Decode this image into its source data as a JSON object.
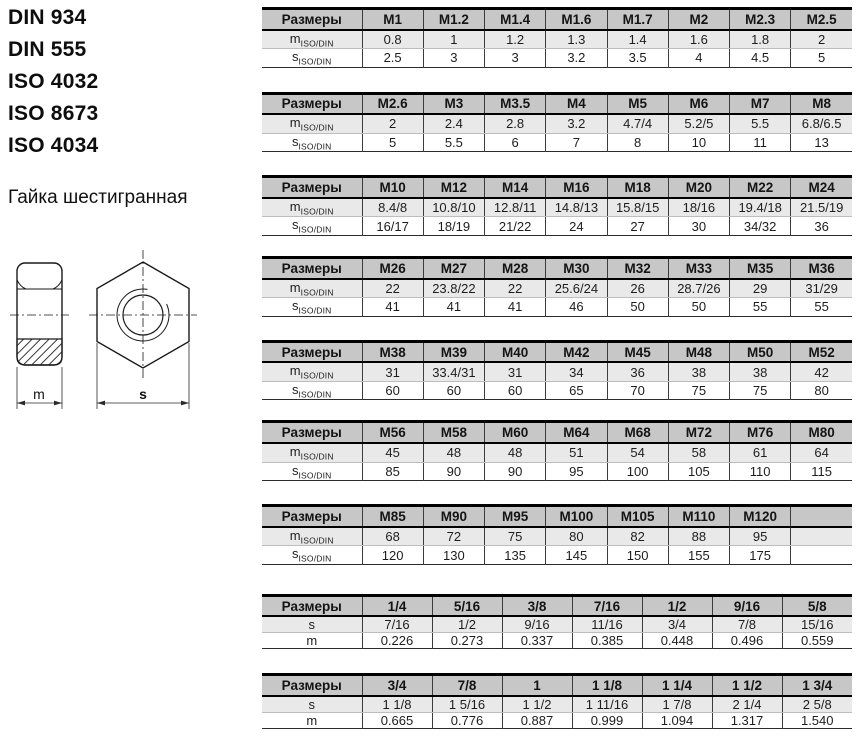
{
  "page": {
    "standards": [
      "DIN 934",
      "DIN 555",
      "ISO 4032",
      "ISO 8673",
      "ISO 4034"
    ],
    "subtitle": "Гайка шестигранная"
  },
  "drawing": {
    "height_dim_label": "m",
    "width_dim_label": "s"
  },
  "colors": {
    "header_bg": "#c7c7c7",
    "alt_row_bg": "#e9e9e9",
    "line": "#1a1a1a"
  },
  "tables": [
    {
      "header": "Размеры",
      "columns": [
        "M1",
        "M1.2",
        "M1.4",
        "M1.6",
        "M1.7",
        "M2",
        "M2.3",
        "M2.5"
      ],
      "rows": [
        {
          "label": "m",
          "sub": "ISO/DIN",
          "values": [
            "0.8",
            "1",
            "1.2",
            "1.3",
            "1.4",
            "1.6",
            "1.8",
            "2"
          ]
        },
        {
          "label": "s",
          "sub": "ISO/DIN",
          "values": [
            "2.5",
            "3",
            "3",
            "3.2",
            "3.5",
            "4",
            "4.5",
            "5"
          ]
        }
      ]
    },
    {
      "header": "Размеры",
      "columns": [
        "M2.6",
        "M3",
        "M3.5",
        "M4",
        "M5",
        "M6",
        "M7",
        "M8"
      ],
      "rows": [
        {
          "label": "m",
          "sub": "ISO/DIN",
          "values": [
            "2",
            "2.4",
            "2.8",
            "3.2",
            "4.7/4",
            "5.2/5",
            "5.5",
            "6.8/6.5"
          ]
        },
        {
          "label": "s",
          "sub": "ISO/DIN",
          "values": [
            "5",
            "5.5",
            "6",
            "7",
            "8",
            "10",
            "11",
            "13"
          ]
        }
      ]
    },
    {
      "header": "Размеры",
      "columns": [
        "M10",
        "M12",
        "M14",
        "M16",
        "M18",
        "M20",
        "M22",
        "M24"
      ],
      "rows": [
        {
          "label": "m",
          "sub": "ISO/DIN",
          "values": [
            "8.4/8",
            "10.8/10",
            "12.8/11",
            "14.8/13",
            "15.8/15",
            "18/16",
            "19.4/18",
            "21.5/19"
          ]
        },
        {
          "label": "s",
          "sub": "ISO/DIN",
          "values": [
            "16/17",
            "18/19",
            "21/22",
            "24",
            "27",
            "30",
            "34/32",
            "36"
          ]
        }
      ]
    },
    {
      "header": "Размеры",
      "columns": [
        "M26",
        "M27",
        "M28",
        "M30",
        "M32",
        "M33",
        "M35",
        "M36"
      ],
      "rows": [
        {
          "label": "m",
          "sub": "ISO/DIN",
          "values": [
            "22",
            "23.8/22",
            "22",
            "25.6/24",
            "26",
            "28.7/26",
            "29",
            "31/29"
          ]
        },
        {
          "label": "s",
          "sub": "ISO/DIN",
          "values": [
            "41",
            "41",
            "41",
            "46",
            "50",
            "50",
            "55",
            "55"
          ]
        }
      ]
    },
    {
      "header": "Размеры",
      "columns": [
        "M38",
        "M39",
        "M40",
        "M42",
        "M45",
        "M48",
        "M50",
        "M52"
      ],
      "rows": [
        {
          "label": "m",
          "sub": "ISO/DIN",
          "values": [
            "31",
            "33.4/31",
            "31",
            "34",
            "36",
            "38",
            "38",
            "42"
          ]
        },
        {
          "label": "s",
          "sub": "ISO/DIN",
          "values": [
            "60",
            "60",
            "60",
            "65",
            "70",
            "75",
            "75",
            "80"
          ]
        }
      ]
    },
    {
      "header": "Размеры",
      "columns": [
        "M56",
        "M58",
        "M60",
        "M64",
        "M68",
        "M72",
        "M76",
        "M80"
      ],
      "rows": [
        {
          "label": "m",
          "sub": "ISO/DIN",
          "values": [
            "45",
            "48",
            "48",
            "51",
            "54",
            "58",
            "61",
            "64"
          ]
        },
        {
          "label": "s",
          "sub": "ISO/DIN",
          "values": [
            "85",
            "90",
            "90",
            "95",
            "100",
            "105",
            "110",
            "115"
          ]
        }
      ]
    },
    {
      "header": "Размеры",
      "columns": [
        "M85",
        "M90",
        "M95",
        "M100",
        "M105",
        "M110",
        "M120",
        ""
      ],
      "rows": [
        {
          "label": "m",
          "sub": "ISO/DIN",
          "values": [
            "68",
            "72",
            "75",
            "80",
            "82",
            "88",
            "95",
            ""
          ]
        },
        {
          "label": "s",
          "sub": "ISO/DIN",
          "values": [
            "120",
            "130",
            "135",
            "145",
            "150",
            "155",
            "175",
            ""
          ]
        }
      ]
    },
    {
      "header": "Размеры",
      "columns": [
        "1/4",
        "5/16",
        "3/8",
        "7/16",
        "1/2",
        "9/16",
        "5/8"
      ],
      "rows": [
        {
          "label": "s",
          "sub": "",
          "values": [
            "7/16",
            "1/2",
            "9/16",
            "11/16",
            "3/4",
            "7/8",
            "15/16"
          ]
        },
        {
          "label": "m",
          "sub": "",
          "values": [
            "0.226",
            "0.273",
            "0.337",
            "0.385",
            "0.448",
            "0.496",
            "0.559"
          ]
        }
      ]
    },
    {
      "header": "Размеры",
      "columns": [
        "3/4",
        "7/8",
        "1",
        "1 1/8",
        "1 1/4",
        "1 1/2",
        "1 3/4"
      ],
      "rows": [
        {
          "label": "s",
          "sub": "",
          "values": [
            "1 1/8",
            "1 5/16",
            "1 1/2",
            "1 11/16",
            "1 7/8",
            "2 1/4",
            "2 5/8"
          ]
        },
        {
          "label": "m",
          "sub": "",
          "values": [
            "0.665",
            "0.776",
            "0.887",
            "0.999",
            "1.094",
            "1.317",
            "1.540"
          ]
        }
      ]
    }
  ]
}
